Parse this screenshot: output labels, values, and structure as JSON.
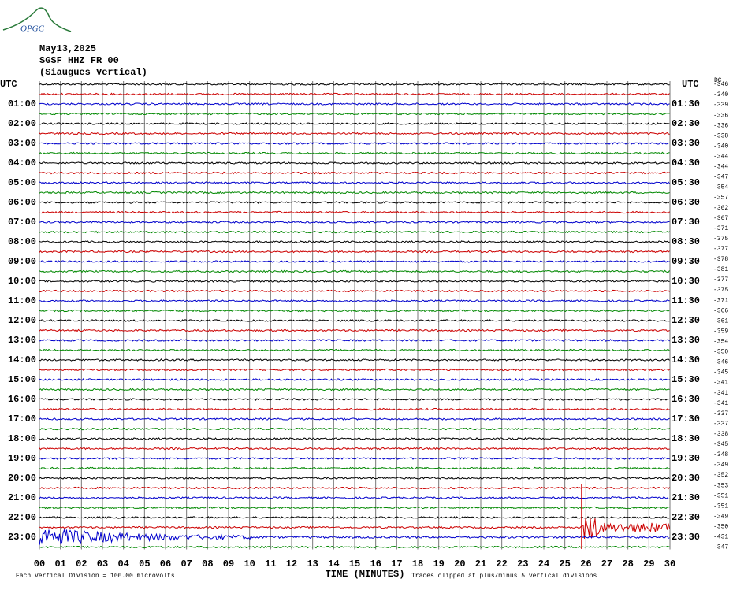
{
  "logo": "OPGC",
  "header": {
    "date": "May13,2025",
    "station": "SGSF HHZ FR 00",
    "location": "(Siaugues Vertical)"
  },
  "left_labels": [
    "UTC",
    "01:00",
    "02:00",
    "03:00",
    "04:00",
    "05:00",
    "06:00",
    "07:00",
    "08:00",
    "09:00",
    "10:00",
    "11:00",
    "12:00",
    "13:00",
    "14:00",
    "15:00",
    "16:00",
    "17:00",
    "18:00",
    "19:00",
    "20:00",
    "21:00",
    "22:00",
    "23:00"
  ],
  "right_labels": [
    "UTC",
    "01:30",
    "02:30",
    "03:30",
    "04:30",
    "05:30",
    "06:30",
    "07:30",
    "08:30",
    "09:30",
    "10:30",
    "11:30",
    "12:30",
    "13:30",
    "14:30",
    "15:30",
    "16:30",
    "17:30",
    "18:30",
    "19:30",
    "20:30",
    "21:30",
    "22:30",
    "23:30"
  ],
  "dc_label": "DC",
  "offsets": [
    "-346",
    "-340",
    "-339",
    "-336",
    "-336",
    "-338",
    "-340",
    "-344",
    "-344",
    "-347",
    "-354",
    "-357",
    "-362",
    "-367",
    "-371",
    "-375",
    "-377",
    "-378",
    "-381",
    "-377",
    "-375",
    "-371",
    "-366",
    "-361",
    "-359",
    "-354",
    "-350",
    "-346",
    "-345",
    "-341",
    "-341",
    "-341",
    "-337",
    "-337",
    "-338",
    "-345",
    "-348",
    "-349",
    "-352",
    "-353",
    "-351",
    "-351",
    "-349",
    "-350",
    "-431",
    "-347"
  ],
  "x_labels": [
    "00",
    "01",
    "02",
    "03",
    "04",
    "05",
    "06",
    "07",
    "08",
    "09",
    "10",
    "11",
    "12",
    "13",
    "14",
    "15",
    "16",
    "17",
    "18",
    "19",
    "20",
    "21",
    "22",
    "23",
    "24",
    "25",
    "26",
    "27",
    "28",
    "29",
    "30"
  ],
  "x_title": "TIME (MINUTES)",
  "footer": {
    "scale": "Each Vertical Division =  100.00 microvolts",
    "clip": "Traces clipped at plus/minus 5 vertical divisions"
  }
}
